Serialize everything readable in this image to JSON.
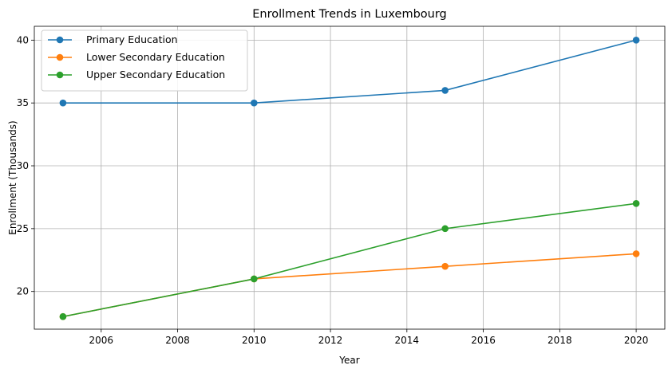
{
  "chart_data": {
    "type": "line",
    "title": "Enrollment Trends in Luxembourg",
    "xlabel": "Year",
    "ylabel": "Enrollment (Thousands)",
    "xlim": [
      2004.25,
      2020.75
    ],
    "ylim": [
      17.0,
      41.1
    ],
    "xticks": [
      2006,
      2008,
      2010,
      2012,
      2014,
      2016,
      2018,
      2020
    ],
    "yticks": [
      20,
      25,
      30,
      35,
      40
    ],
    "grid": true,
    "legend_position": "top-left",
    "x": [
      2005,
      2010,
      2015,
      2020
    ],
    "series": [
      {
        "name": "Primary Education",
        "color": "#1f77b4",
        "values": [
          35,
          35,
          36,
          40
        ]
      },
      {
        "name": "Lower Secondary Education",
        "color": "#ff7f0e",
        "values": [
          18,
          21,
          22,
          23
        ]
      },
      {
        "name": "Upper Secondary Education",
        "color": "#2ca02c",
        "values": [
          18,
          21,
          25,
          27
        ]
      }
    ]
  }
}
